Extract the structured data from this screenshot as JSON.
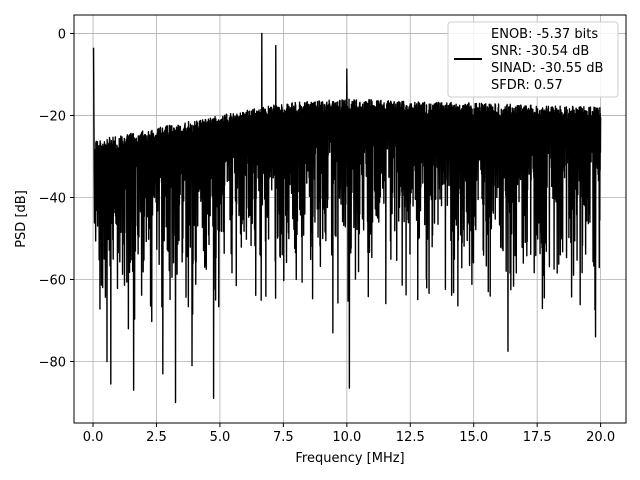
{
  "chart_data": {
    "type": "line",
    "title": "",
    "xlabel": "Frequency [MHz]",
    "ylabel": "PSD [dB]",
    "xlim": [
      -0.75,
      21.0
    ],
    "ylim": [
      -95,
      4.5
    ],
    "xticks": [
      0.0,
      2.5,
      5.0,
      7.5,
      10.0,
      12.5,
      15.0,
      17.5,
      20.0
    ],
    "xtick_labels": [
      "0.0",
      "2.5",
      "5.0",
      "7.5",
      "10.0",
      "12.5",
      "15.0",
      "17.5",
      "20.0"
    ],
    "yticks": [
      0,
      -20,
      -40,
      -60,
      -80
    ],
    "ytick_labels": [
      "0",
      "−20",
      "−40",
      "−60",
      "−80"
    ],
    "grid": true,
    "legend_placement": "top-right",
    "series": [
      {
        "color": "#000000",
        "description": "dense PSD trace from 0 to 20 MHz; upper envelope rises from about -26 dB at low frequency to about -18 dB near 20 MHz, lower envelope roughly -55 to -70 dB with deep dips",
        "envelope_x": [
          0.05,
          1.0,
          2.5,
          5.0,
          7.5,
          10.0,
          12.5,
          15.0,
          17.5,
          20.0
        ],
        "envelope_upper": [
          -26,
          -25,
          -23,
          -20,
          -17,
          -16,
          -16.5,
          -17,
          -17.5,
          -18
        ],
        "envelope_lower": [
          -65,
          -68,
          -64,
          -62,
          -60,
          -61,
          -60,
          -61,
          -62,
          -62
        ],
        "spikes": [
          {
            "x": 0.02,
            "y": -3.5
          },
          {
            "x": 6.65,
            "y": 0.0
          },
          {
            "x": 7.2,
            "y": -3.0
          },
          {
            "x": 10.0,
            "y": -8.7
          }
        ],
        "dips": [
          {
            "x": 0.55,
            "y": -80
          },
          {
            "x": 0.7,
            "y": -85.5
          },
          {
            "x": 1.6,
            "y": -87
          },
          {
            "x": 2.75,
            "y": -83
          },
          {
            "x": 3.25,
            "y": -90
          },
          {
            "x": 3.9,
            "y": -81
          },
          {
            "x": 4.75,
            "y": -89
          },
          {
            "x": 9.45,
            "y": -73
          },
          {
            "x": 10.1,
            "y": -86.5
          },
          {
            "x": 16.35,
            "y": -77.5
          },
          {
            "x": 19.8,
            "y": -74
          }
        ]
      }
    ],
    "legend": {
      "lines": [
        "ENOB: -5.37 bits",
        "SNR: -30.54 dB",
        "SINAD: -30.55 dB",
        "SFDR: 0.57"
      ],
      "line_color": "#000000"
    }
  }
}
